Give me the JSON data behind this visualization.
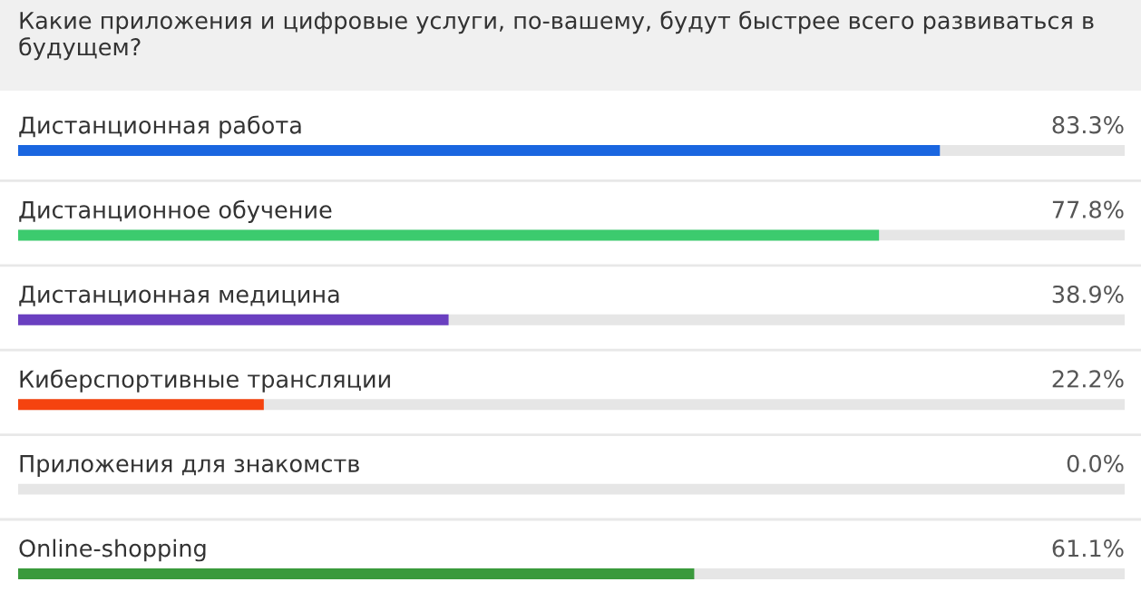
{
  "chart_data": {
    "type": "bar",
    "orientation": "horizontal",
    "title": "Какие приложения и цифровые услуги, по-вашему, будут быстрее всего развиваться в будущем?",
    "categories": [
      "Дистанционная работа",
      "Дистанционное обучение",
      "Дистанционная медицина",
      "Киберспортивные трансляции",
      "Приложения для знакомств",
      "Online-shopping"
    ],
    "values": [
      83.3,
      77.8,
      38.9,
      22.2,
      0.0,
      61.1
    ],
    "colors": [
      "#1a66e0",
      "#3ccb6e",
      "#6a3fc0",
      "#f5430f",
      "#e0e0e0",
      "#3a9a3c"
    ],
    "value_labels": [
      "83.3%",
      "77.8%",
      "38.9%",
      "22.2%",
      "0.0%",
      "61.1%"
    ],
    "xlim": [
      0,
      100
    ]
  }
}
